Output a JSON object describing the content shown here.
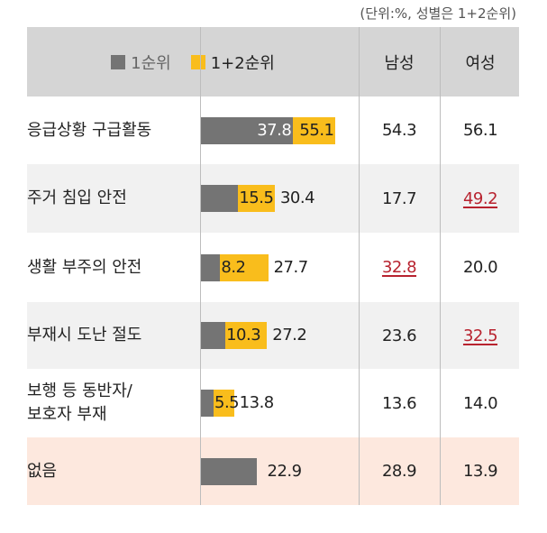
{
  "unit_note": "(단위:%, 성별은 1+2순위)",
  "header": {
    "male": "남성",
    "female": "여성"
  },
  "chart_data": {
    "type": "bar",
    "categories": [
      "응급상황 구급활동",
      "주거 침입 안전",
      "생활 부주의 안전",
      "부재시 도난 절도",
      "보행 등 동반자/\n보호자 부재",
      "없음"
    ],
    "series": [
      {
        "name": "1순위",
        "color": "#747474",
        "values": [
          37.8,
          15.5,
          8.2,
          10.3,
          5.5,
          22.9
        ],
        "labels": [
          "37.8",
          "15.5",
          "8.2",
          "10.3",
          "5.5",
          "22.9"
        ]
      },
      {
        "name": "1+2순위",
        "color": "#f9bd1c",
        "values": [
          55.1,
          30.4,
          27.7,
          27.2,
          13.8,
          null
        ],
        "labels": [
          "55.1",
          "30.4",
          "27.7",
          "27.2",
          "13.8",
          ""
        ]
      }
    ],
    "male": [
      "54.3",
      "17.7",
      "32.8",
      "23.6",
      "13.6",
      "28.9"
    ],
    "female": [
      "56.1",
      "49.2",
      "20.0",
      "32.5",
      "14.0",
      "13.9"
    ],
    "highlight_male": [
      false,
      false,
      true,
      false,
      false,
      false
    ],
    "highlight_female": [
      false,
      true,
      false,
      true,
      false,
      false
    ],
    "row_backgrounds": [
      "#ffffff",
      "#f1f1f1",
      "#ffffff",
      "#f1f1f1",
      "#ffffff",
      "#fde8de"
    ]
  }
}
